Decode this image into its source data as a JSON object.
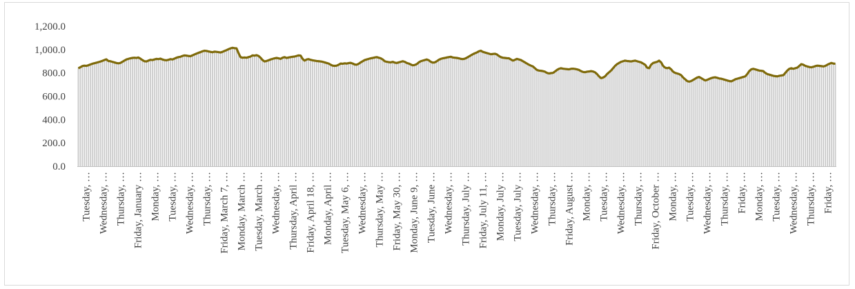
{
  "chart_data": {
    "type": "bar",
    "combined_line": true,
    "title": "",
    "xlabel": "",
    "ylabel": "",
    "ylim": [
      0,
      1200
    ],
    "yticks": [
      "0.0",
      "200.0",
      "400.0",
      "600.0",
      "800.0",
      "1,000.0",
      "1,200.0"
    ],
    "grid": false,
    "legend": "none",
    "x_tick_labels": [
      "Tuesday, …",
      "Wednesday, …",
      "Thursday, …",
      "Friday, January …",
      "Monday, …",
      "Tuesday, …",
      "Wednesday, …",
      "Thursday, …",
      "Friday, March 7, …",
      "Monday, March …",
      "Tuesday, March …",
      "Wednesday, …",
      "Thursday, April …",
      "Friday, April 18, …",
      "Monday, April …",
      "Tuesday, May 6, …",
      "Wednesday, …",
      "Thursday, May …",
      "Friday, May 30, …",
      "Monday, June 9, …",
      "Tuesday, June …",
      "Wednesday, …",
      "Thursday, July …",
      "Friday, July 11, …",
      "Monday, July …",
      "Tuesday, July …",
      "Wednesday, …",
      "Thursday, …",
      "Friday, August …",
      "Monday, …",
      "Tuesday, …",
      "Wednesday, …",
      "Thursday, …",
      "Friday, October …",
      "Monday, …",
      "Tuesday, …",
      "Wednesday, …",
      "Thursday, …",
      "Friday, …",
      "Monday, …",
      "Tuesday, …",
      "Wednesday, …",
      "Thursday, …",
      "Friday, …"
    ],
    "series": [
      {
        "values": [
          840,
          848,
          858,
          862,
          860,
          865,
          872,
          878,
          883,
          887,
          892,
          897,
          903,
          910,
          916,
          902,
          900,
          895,
          890,
          885,
          882,
          885,
          895,
          905,
          915,
          920,
          925,
          928,
          930,
          928,
          932,
          922,
          910,
          900,
          898,
          905,
          912,
          910,
          915,
          920,
          918,
          922,
          915,
          910,
          908,
          912,
          918,
          915,
          922,
          930,
          935,
          938,
          945,
          950,
          948,
          945,
          943,
          950,
          958,
          965,
          972,
          978,
          985,
          990,
          988,
          984,
          980,
          977,
          982,
          980,
          978,
          975,
          980,
          988,
          995,
          1003,
          1010,
          1015,
          1012,
          1010,
          970,
          935,
          930,
          932,
          930,
          935,
          940,
          950,
          948,
          952,
          945,
          930,
          910,
          898,
          902,
          908,
          915,
          920,
          925,
          928,
          925,
          920,
          930,
          935,
          928,
          932,
          935,
          938,
          940,
          945,
          950,
          948,
          920,
          905,
          915,
          918,
          912,
          908,
          905,
          902,
          900,
          898,
          895,
          890,
          885,
          880,
          870,
          862,
          860,
          862,
          870,
          880,
          878,
          882,
          880,
          884,
          886,
          880,
          872,
          870,
          878,
          890,
          900,
          910,
          915,
          920,
          925,
          928,
          932,
          935,
          930,
          925,
          915,
          900,
          895,
          892,
          890,
          895,
          888,
          885,
          890,
          895,
          900,
          895,
          885,
          880,
          872,
          865,
          868,
          875,
          890,
          900,
          905,
          910,
          915,
          908,
          895,
          888,
          890,
          900,
          912,
          920,
          925,
          928,
          932,
          935,
          938,
          932,
          930,
          928,
          925,
          920,
          918,
          922,
          930,
          940,
          950,
          960,
          968,
          975,
          985,
          990,
          980,
          975,
          970,
          965,
          960,
          962,
          964,
          958,
          945,
          935,
          930,
          928,
          926,
          925,
          915,
          905,
          912,
          920,
          915,
          910,
          900,
          890,
          880,
          870,
          862,
          855,
          840,
          825,
          820,
          818,
          815,
          810,
          800,
          795,
          798,
          800,
          812,
          825,
          835,
          840,
          836,
          834,
          832,
          830,
          835,
          836,
          834,
          830,
          825,
          815,
          808,
          806,
          810,
          812,
          815,
          812,
          805,
          790,
          770,
          755,
          760,
          770,
          790,
          805,
          820,
          840,
          860,
          875,
          885,
          895,
          900,
          905,
          902,
          900,
          898,
          902,
          905,
          900,
          895,
          890,
          880,
          870,
          845,
          840,
          870,
          885,
          890,
          895,
          905,
          890,
          860,
          845,
          840,
          845,
          830,
          810,
          800,
          795,
          790,
          780,
          760,
          745,
          730,
          725,
          730,
          740,
          750,
          760,
          765,
          755,
          745,
          735,
          740,
          748,
          755,
          760,
          762,
          758,
          752,
          750,
          745,
          740,
          735,
          730,
          728,
          735,
          745,
          750,
          755,
          760,
          765,
          770,
          790,
          815,
          830,
          835,
          830,
          825,
          820,
          818,
          815,
          800,
          790,
          785,
          780,
          775,
          772,
          770,
          775,
          778,
          780,
          800,
          820,
          835,
          840,
          835,
          840,
          845,
          860,
          875,
          870,
          860,
          855,
          850,
          848,
          852,
          858,
          862,
          860,
          858,
          855,
          860,
          870,
          878,
          885,
          880,
          878
        ]
      }
    ]
  }
}
